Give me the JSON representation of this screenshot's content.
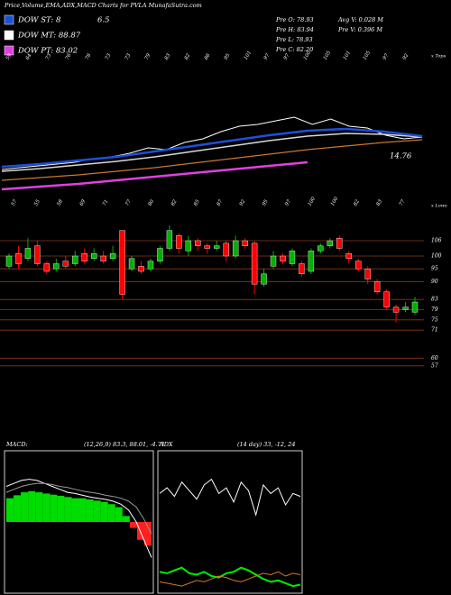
{
  "header": {
    "title": "Price,Volume,EMA,ADX,MACD Charts for PVLA MunafaSutra.com"
  },
  "legend": [
    {
      "label": "DOW ST: 8",
      "color": "#1e4fd8"
    },
    {
      "label": "DOW MT: 88.87",
      "color": "#ffffff"
    },
    {
      "label": "DOW PT: 83.02",
      "color": "#e040e0"
    }
  ],
  "legend_extra": "6.5",
  "info": [
    "Pre O: 78.93",
    "Pre H: 83.94",
    "Pre L: 78.93",
    "Pre C: 82.20"
  ],
  "info2": [
    "Avg V: 0.028 M",
    "Pre V: 0.396 M"
  ],
  "chart_data": [
    {
      "type": "line",
      "ylim": [
        40,
        120
      ],
      "annotation": "14.76",
      "tops_label": "x Tops",
      "lows_label": "x Lows",
      "top_labels": [
        "59",
        "64",
        "73",
        "76",
        "78",
        "73",
        "73",
        "79",
        "83",
        "82",
        "86",
        "95",
        "101",
        "97",
        "97",
        "100",
        "105",
        "101",
        "105",
        "97",
        "92"
      ],
      "low_labels": [
        "57",
        "55",
        "58",
        "69",
        "71",
        "77",
        "80",
        "82",
        "85",
        "87",
        "92",
        "95",
        "97",
        "100",
        "100",
        "82",
        "83",
        "77"
      ],
      "series": [
        {
          "color": "#ffffff",
          "width": 1,
          "values": [
            61,
            62,
            63,
            64,
            65,
            67,
            68,
            70,
            73,
            72,
            76,
            78,
            82,
            85,
            86,
            88,
            90,
            86,
            89,
            85,
            84,
            80,
            78,
            79
          ]
        },
        {
          "color": "#d8d8d8",
          "width": 1.5,
          "values": [
            60,
            61.5,
            63.5,
            65.5,
            68,
            71,
            74,
            77,
            79.5,
            81,
            80.5,
            79
          ]
        },
        {
          "color": "#c87830",
          "width": 1.2,
          "values": [
            55,
            56.5,
            58,
            60,
            62,
            64.5,
            67,
            69.5,
            72,
            74,
            76,
            77.5
          ]
        },
        {
          "color": "#1e4fd8",
          "width": 2.5,
          "values": [
            62.5,
            64,
            66,
            68,
            71,
            74,
            77,
            80,
            82.5,
            83.5,
            82,
            79.5
          ]
        },
        {
          "color": "#e040e0",
          "width": 2.5,
          "values": [
            50,
            51.5,
            53,
            55,
            57,
            59,
            61,
            63,
            65,
            null,
            null,
            null
          ]
        }
      ]
    },
    {
      "type": "candlestick",
      "ylim": [
        52,
        112
      ],
      "yticks": [
        106,
        100,
        95,
        90,
        83,
        79,
        75,
        71,
        60,
        57
      ],
      "grid": true,
      "up_color": "#00b000",
      "down_color": "#ff0000",
      "open": [
        96,
        101,
        99,
        104,
        97,
        95,
        98,
        97,
        101,
        99,
        100,
        99,
        110,
        95,
        96,
        95,
        98,
        103,
        108,
        102,
        106,
        104,
        103,
        105,
        100,
        106,
        105,
        89,
        96,
        100,
        97,
        97,
        94,
        102,
        104,
        107,
        101,
        98,
        95,
        90,
        86,
        80,
        79,
        78
      ],
      "close": [
        100,
        97,
        103,
        97,
        94,
        97,
        96,
        100,
        98,
        101,
        98,
        101,
        85,
        99,
        94,
        98,
        103,
        110,
        103,
        106,
        104,
        103,
        104,
        100,
        106,
        104,
        89,
        93,
        100,
        98,
        102,
        93,
        102,
        104,
        106,
        103,
        99,
        95,
        91,
        86,
        80,
        78,
        80,
        82
      ],
      "high": [
        101,
        104,
        107,
        106,
        98,
        99,
        100,
        102,
        103,
        103,
        102,
        104,
        110,
        100,
        98,
        99,
        104,
        112,
        109,
        108,
        107,
        105,
        106,
        106,
        108,
        107,
        106,
        95,
        102,
        101,
        103,
        98,
        103,
        105,
        107,
        108,
        102,
        99,
        96,
        91,
        87,
        81,
        82,
        84
      ],
      "low": [
        95,
        95,
        98,
        96,
        93,
        94,
        95,
        96,
        97,
        98,
        97,
        98,
        83,
        94,
        93,
        94,
        97,
        102,
        101,
        100,
        102,
        101,
        102,
        98,
        99,
        103,
        85,
        88,
        95,
        97,
        96,
        92,
        93,
        101,
        103,
        102,
        97,
        94,
        89,
        85,
        79,
        74,
        78,
        77
      ]
    },
    {
      "type": "macd",
      "title": "MACD:",
      "subtitle": "(12,26,9) 83.3, 88.01, -4.71",
      "ylim": [
        -12,
        12
      ],
      "hist": [
        4,
        4.5,
        5,
        5.2,
        5,
        4.8,
        4.6,
        4.4,
        4.2,
        4,
        4,
        3.8,
        3.6,
        3.4,
        3,
        2.5,
        1,
        -1,
        -3,
        -4
      ],
      "hist_up": "#00dd00",
      "hist_down": "#ff2020",
      "series": [
        {
          "color": "#ffffff",
          "width": 1,
          "values": [
            6,
            6.5,
            7,
            7.2,
            7,
            6.5,
            6,
            5.5,
            5,
            4.8,
            4.5,
            4.2,
            4,
            3.8,
            3.5,
            3,
            2,
            0,
            -3,
            -6
          ]
        },
        {
          "color": "#9a9a9a",
          "width": 1,
          "values": [
            5,
            5.5,
            6,
            6.3,
            6.5,
            6.5,
            6.3,
            6,
            5.8,
            5.5,
            5.2,
            5,
            4.8,
            4.5,
            4.3,
            4,
            3.5,
            2.5,
            0.5,
            -2
          ]
        }
      ]
    },
    {
      "type": "line",
      "title": "ADX",
      "subtitle": "(14 day) 33, -12, 24",
      "ylim": [
        0,
        100
      ],
      "series": [
        {
          "color": "#ffffff",
          "width": 1,
          "values": [
            70,
            74,
            68,
            78,
            72,
            66,
            76,
            80,
            70,
            74,
            64,
            78,
            72,
            55,
            76,
            70,
            74,
            62,
            70,
            68
          ]
        },
        {
          "color": "#00ee00",
          "width": 2,
          "values": [
            15,
            14,
            16,
            18,
            14,
            13,
            15,
            12,
            11,
            14,
            15,
            18,
            16,
            13,
            10,
            8,
            9,
            7,
            5,
            6
          ]
        },
        {
          "color": "#d87a20",
          "width": 1,
          "values": [
            8,
            7,
            6,
            5,
            7,
            9,
            8,
            10,
            12,
            11,
            9,
            8,
            10,
            12,
            14,
            13,
            15,
            12,
            14,
            13
          ]
        }
      ]
    }
  ]
}
